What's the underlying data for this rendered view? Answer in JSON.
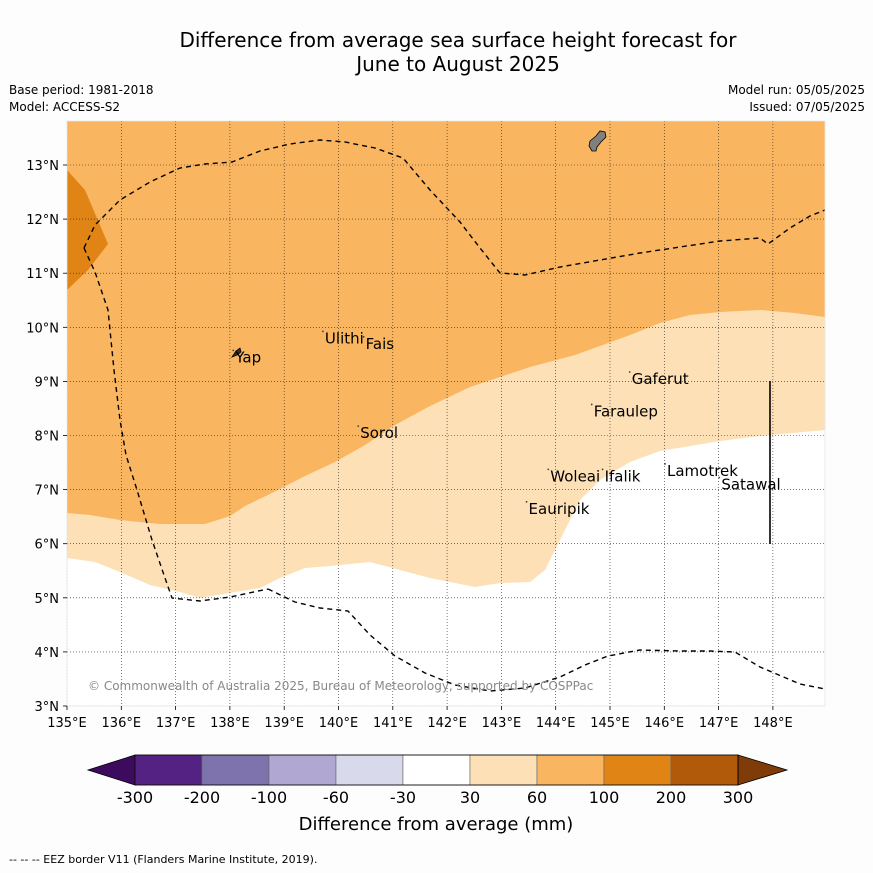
{
  "title": {
    "line1": "Difference from average sea surface height forecast for",
    "line2": "June to August 2025"
  },
  "meta_left": {
    "base_period": "Base period: 1981-2018",
    "model": "Model: ACCESS-S2"
  },
  "meta_right": {
    "model_run": "Model run: 05/05/2025",
    "issued": "Issued: 07/05/2025"
  },
  "map": {
    "lon_range": [
      135,
      149
    ],
    "lat_range": [
      3,
      13.8
    ],
    "lon_ticks": [
      "135°E",
      "136°E",
      "137°E",
      "138°E",
      "139°E",
      "140°E",
      "141°E",
      "142°E",
      "143°E",
      "144°E",
      "145°E",
      "146°E",
      "147°E",
      "148°E"
    ],
    "lat_ticks": [
      "3°N",
      "4°N",
      "5°N",
      "6°N",
      "7°N",
      "8°N",
      "9°N",
      "10°N",
      "11°N",
      "12°N",
      "13°N"
    ],
    "gridlines": true,
    "places": [
      {
        "name": "Ulithi",
        "lon": 139.75,
        "lat": 9.85
      },
      {
        "name": "Fais",
        "lon": 140.5,
        "lat": 9.75
      },
      {
        "name": "Yap",
        "lon": 138.1,
        "lat": 9.5
      },
      {
        "name": "Sorol",
        "lon": 140.4,
        "lat": 8.1
      },
      {
        "name": "Gaferut",
        "lon": 145.4,
        "lat": 9.1
      },
      {
        "name": "Faraulep",
        "lon": 144.7,
        "lat": 8.5
      },
      {
        "name": "Lamotrek",
        "lon": 146.05,
        "lat": 7.4
      },
      {
        "name": "Woleai",
        "lon": 143.9,
        "lat": 7.3
      },
      {
        "name": "Ifalik",
        "lon": 144.9,
        "lat": 7.3
      },
      {
        "name": "Satawal",
        "lon": 147.05,
        "lat": 7.15
      },
      {
        "name": "Eauripik",
        "lon": 143.5,
        "lat": 6.7
      }
    ],
    "copyright": "© Commonwealth of Australia 2025, Bureau of Meteorology, supported by COSPPac"
  },
  "colorbar": {
    "label": "Difference from average (mm)",
    "ticks": [
      "-300",
      "-200",
      "-100",
      "-60",
      "-30",
      "30",
      "60",
      "100",
      "200",
      "300"
    ],
    "colors": [
      "#3d0b5e",
      "#532283",
      "#7e73ad",
      "#b0a8d2",
      "#d9d9ec",
      "#ffffff",
      "#fde0b6",
      "#f9b55f",
      "#e08416",
      "#b15a0a",
      "#7f3b08"
    ]
  },
  "legend": {
    "eez": "--  --  -- EEZ border V11 (Flanders Marine Institute, 2019)."
  }
}
